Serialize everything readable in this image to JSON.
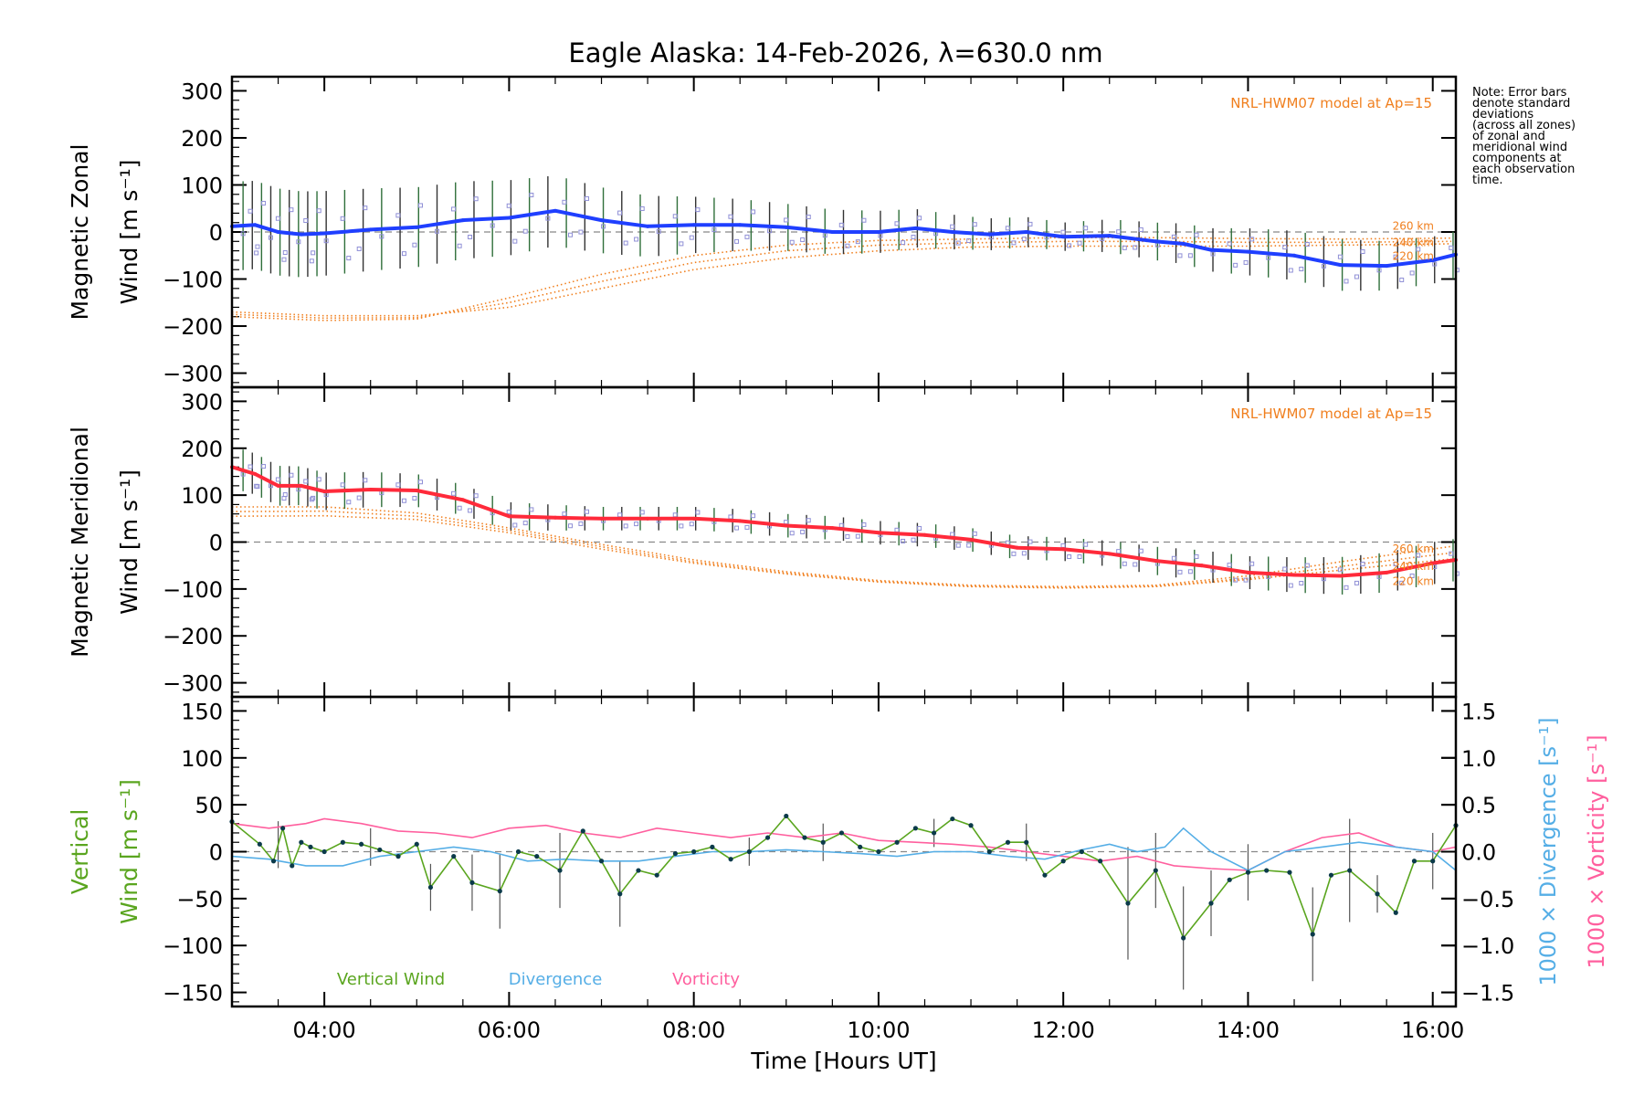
{
  "colors": {
    "zonal": "#1f3fff",
    "meridional": "#ff2a3a",
    "model": "#f07f1e",
    "vertical": "#5aa51f",
    "divergence": "#55aee6",
    "vorticity": "#ff5f9e",
    "zones": "#8f8fd6",
    "errorbar": "#555555",
    "dashed": "#888888"
  },
  "chart_data": [
    {
      "type": "line",
      "panel": "zonal",
      "title": "Eagle Alaska: 14-Feb-2026, λ=630.0 nm",
      "ylabel_line1": "Magnetic Zonal",
      "ylabel_line2": "Wind [m s⁻¹]",
      "ylim": [
        -330,
        330
      ],
      "yticks": [
        300,
        200,
        100,
        0,
        -100,
        -200,
        -300
      ],
      "xlim": [
        3.0,
        16.25
      ],
      "model_label": "NRL-HWM07 model at Ap=15",
      "model_altitudes": [
        "260 km",
        "240 km",
        "220 km"
      ],
      "series": [
        {
          "name": "Zonal Wind",
          "x": [
            3.0,
            3.25,
            3.5,
            3.75,
            4.0,
            4.5,
            5.0,
            5.5,
            6.0,
            6.5,
            7.0,
            7.5,
            8.0,
            8.5,
            9.0,
            9.5,
            10.0,
            10.4,
            10.8,
            11.2,
            11.6,
            12.0,
            12.5,
            13.0,
            13.3,
            13.6,
            14.0,
            14.5,
            15.0,
            15.5,
            16.0,
            16.25
          ],
          "values": [
            12,
            15,
            0,
            -5,
            -3,
            5,
            10,
            25,
            30,
            45,
            25,
            12,
            15,
            15,
            10,
            0,
            0,
            8,
            0,
            -5,
            0,
            -10,
            -8,
            -20,
            -25,
            -38,
            -42,
            -50,
            -70,
            -72,
            -60,
            -48
          ]
        },
        {
          "name": "Error bar half-width",
          "x": [
            3.0,
            4.0,
            5.0,
            6.0,
            7.0,
            8.0,
            9.0,
            10.0,
            11.0,
            12.0,
            13.0,
            14.0,
            15.0,
            16.0
          ],
          "values": [
            95,
            90,
            85,
            80,
            70,
            60,
            50,
            45,
            35,
            30,
            40,
            50,
            55,
            50
          ]
        },
        {
          "name": "HWM07 220 km",
          "x": [
            3.0,
            4.0,
            5.0,
            6.0,
            7.0,
            8.0,
            9.0,
            10.0,
            11.0,
            12.0,
            13.0,
            14.0,
            15.0,
            16.25
          ],
          "values": [
            -170,
            -178,
            -178,
            -160,
            -120,
            -80,
            -55,
            -40,
            -32,
            -30,
            -30,
            -30,
            -28,
            -25
          ]
        },
        {
          "name": "HWM07 240 km",
          "x": [
            3.0,
            4.0,
            5.0,
            6.0,
            7.0,
            8.0,
            9.0,
            10.0,
            11.0,
            12.0,
            13.0,
            14.0,
            15.0,
            16.25
          ],
          "values": [
            -175,
            -183,
            -182,
            -150,
            -105,
            -65,
            -40,
            -28,
            -23,
            -20,
            -20,
            -22,
            -22,
            -20
          ]
        },
        {
          "name": "HWM07 260 km",
          "x": [
            3.0,
            4.0,
            5.0,
            6.0,
            7.0,
            8.0,
            9.0,
            10.0,
            11.0,
            12.0,
            13.0,
            14.0,
            15.0,
            16.25
          ],
          "values": [
            -180,
            -188,
            -185,
            -140,
            -90,
            -50,
            -28,
            -18,
            -15,
            -12,
            -12,
            -14,
            -15,
            -13
          ]
        }
      ]
    },
    {
      "type": "line",
      "panel": "meridional",
      "ylabel_line1": "Magnetic Meridional",
      "ylabel_line2": "Wind [m s⁻¹]",
      "ylim": [
        -330,
        330
      ],
      "yticks": [
        300,
        200,
        100,
        0,
        -100,
        -200,
        -300
      ],
      "xlim": [
        3.0,
        16.25
      ],
      "model_label": "NRL-HWM07 model at Ap=15",
      "model_altitudes": [
        "260 km",
        "240 km",
        "220 km"
      ],
      "series": [
        {
          "name": "Meridional Wind",
          "x": [
            3.0,
            3.25,
            3.5,
            3.75,
            4.0,
            4.5,
            5.0,
            5.5,
            6.0,
            6.5,
            7.0,
            7.5,
            8.0,
            8.5,
            9.0,
            9.5,
            10.0,
            10.5,
            11.0,
            11.5,
            12.0,
            12.5,
            13.0,
            13.5,
            14.0,
            14.5,
            15.0,
            15.5,
            16.0,
            16.25
          ],
          "values": [
            160,
            145,
            120,
            120,
            108,
            112,
            110,
            90,
            55,
            52,
            50,
            50,
            50,
            45,
            35,
            30,
            20,
            15,
            5,
            -12,
            -15,
            -25,
            -40,
            -50,
            -65,
            -70,
            -72,
            -65,
            -45,
            -38
          ]
        },
        {
          "name": "Error bar half-width",
          "x": [
            3.0,
            4.0,
            5.0,
            6.0,
            7.0,
            8.0,
            9.0,
            10.0,
            11.0,
            12.0,
            13.0,
            14.0,
            15.0,
            16.0
          ],
          "values": [
            45,
            40,
            35,
            30,
            25,
            25,
            25,
            25,
            25,
            25,
            30,
            35,
            40,
            45
          ]
        },
        {
          "name": "HWM07 220 km",
          "x": [
            3.0,
            4.0,
            5.0,
            6.0,
            7.0,
            8.0,
            9.0,
            10.0,
            11.0,
            12.0,
            13.0,
            14.0,
            15.0,
            16.25
          ],
          "values": [
            55,
            56,
            48,
            20,
            -15,
            -45,
            -68,
            -85,
            -95,
            -98,
            -95,
            -80,
            -60,
            -35
          ]
        },
        {
          "name": "HWM07 240 km",
          "x": [
            3.0,
            4.0,
            5.0,
            6.0,
            7.0,
            8.0,
            9.0,
            10.0,
            11.0,
            12.0,
            13.0,
            14.0,
            15.0,
            16.25
          ],
          "values": [
            65,
            66,
            55,
            25,
            -10,
            -42,
            -66,
            -84,
            -94,
            -97,
            -94,
            -77,
            -52,
            -22
          ]
        },
        {
          "name": "HWM07 260 km",
          "x": [
            3.0,
            4.0,
            5.0,
            6.0,
            7.0,
            8.0,
            9.0,
            10.0,
            11.0,
            12.0,
            13.0,
            14.0,
            15.0,
            16.25
          ],
          "values": [
            75,
            75,
            62,
            30,
            -5,
            -38,
            -63,
            -82,
            -92,
            -95,
            -92,
            -72,
            -42,
            -8
          ]
        }
      ]
    },
    {
      "type": "line",
      "panel": "vertical",
      "ylabel_line1": "Vertical",
      "ylabel_line2": "Wind [m s⁻¹]",
      "ylim": [
        -165,
        165
      ],
      "yticks": [
        150,
        100,
        50,
        0,
        -50,
        -100,
        -150
      ],
      "y2label_divergence": "1000 × Divergence [s⁻¹]",
      "y2label_vorticity": "1000 × Vorticity [s⁻¹]",
      "y2lim": [
        -1.65,
        1.65
      ],
      "y2ticks": [
        1.5,
        1.0,
        0.5,
        0.0,
        -0.5,
        -1.0,
        -1.5
      ],
      "y2ticklabels": [
        "1.5",
        "1.0",
        "0.5",
        "0.0",
        "−0.5",
        "−1.0",
        "−1.5"
      ],
      "xlim": [
        3.0,
        16.25
      ],
      "xticks": [
        4,
        6,
        8,
        10,
        12,
        14,
        16
      ],
      "xticklabels": [
        "04:00",
        "06:00",
        "08:00",
        "10:00",
        "12:00",
        "14:00",
        "16:00"
      ],
      "xlabel": "Time [Hours UT]",
      "legend": [
        "Vertical Wind",
        "Divergence",
        "Vorticity"
      ],
      "series": [
        {
          "name": "Vertical Wind",
          "x": [
            3.0,
            3.3,
            3.45,
            3.55,
            3.65,
            3.75,
            3.85,
            4.0,
            4.2,
            4.4,
            4.6,
            4.8,
            5.0,
            5.15,
            5.4,
            5.6,
            5.9,
            6.1,
            6.3,
            6.55,
            6.8,
            7.0,
            7.2,
            7.4,
            7.6,
            7.8,
            8.0,
            8.2,
            8.4,
            8.6,
            8.8,
            9.0,
            9.2,
            9.4,
            9.6,
            9.8,
            10.0,
            10.2,
            10.4,
            10.6,
            10.8,
            11.0,
            11.2,
            11.4,
            11.6,
            11.8,
            12.0,
            12.2,
            12.4,
            12.7,
            13.0,
            13.3,
            13.6,
            13.8,
            14.0,
            14.2,
            14.45,
            14.7,
            14.9,
            15.1,
            15.4,
            15.6,
            15.8,
            16.0,
            16.25
          ],
          "values": [
            32,
            8,
            -10,
            25,
            -15,
            10,
            5,
            0,
            10,
            8,
            2,
            -5,
            8,
            -38,
            -5,
            -33,
            -42,
            0,
            -5,
            -20,
            22,
            -10,
            -45,
            -20,
            -25,
            -2,
            0,
            5,
            -8,
            0,
            15,
            38,
            15,
            10,
            20,
            5,
            0,
            10,
            25,
            20,
            35,
            28,
            0,
            10,
            10,
            -25,
            -10,
            0,
            -10,
            -55,
            -20,
            -92,
            -55,
            -30,
            -22,
            -20,
            -22,
            -88,
            -25,
            -20,
            -45,
            -65,
            -10,
            -10,
            28
          ]
        },
        {
          "name": "Vertical Wind error",
          "x": [
            3.5,
            4.5,
            5.15,
            5.6,
            5.9,
            6.55,
            7.2,
            8.6,
            9.4,
            10.6,
            11.6,
            12.7,
            13.0,
            13.3,
            13.6,
            14.0,
            14.7,
            15.1,
            15.4,
            16.0
          ],
          "values": [
            25,
            20,
            25,
            30,
            40,
            40,
            35,
            15,
            20,
            15,
            20,
            60,
            40,
            55,
            35,
            30,
            50,
            55,
            20,
            30
          ]
        },
        {
          "name": "Divergence",
          "x": [
            3.0,
            3.4,
            3.8,
            4.2,
            4.6,
            5.0,
            5.4,
            5.8,
            6.2,
            6.6,
            7.0,
            7.4,
            7.8,
            8.2,
            8.6,
            9.0,
            9.4,
            9.8,
            10.2,
            10.6,
            11.0,
            11.4,
            11.8,
            12.2,
            12.5,
            12.8,
            13.1,
            13.3,
            13.6,
            14.0,
            14.4,
            14.8,
            15.2,
            15.6,
            16.0,
            16.25
          ],
          "values": [
            -0.05,
            -0.08,
            -0.15,
            -0.15,
            -0.05,
            0.0,
            0.05,
            0.0,
            -0.1,
            -0.08,
            -0.1,
            -0.1,
            -0.05,
            0.0,
            0.0,
            0.02,
            0.0,
            -0.02,
            -0.05,
            0.0,
            0.0,
            -0.05,
            -0.08,
            0.02,
            0.08,
            0.0,
            0.05,
            0.25,
            0.0,
            -0.2,
            0.0,
            0.05,
            0.1,
            0.05,
            0.0,
            -0.2
          ]
        },
        {
          "name": "Vorticity",
          "x": [
            3.0,
            3.4,
            3.8,
            4.0,
            4.4,
            4.8,
            5.2,
            5.6,
            6.0,
            6.4,
            6.8,
            7.2,
            7.6,
            8.0,
            8.4,
            8.8,
            9.2,
            9.6,
            10.0,
            10.4,
            10.8,
            11.2,
            11.6,
            12.0,
            12.4,
            12.8,
            13.2,
            13.6,
            14.0,
            14.4,
            14.8,
            15.2,
            15.6,
            16.0,
            16.25
          ],
          "values": [
            0.3,
            0.25,
            0.3,
            0.35,
            0.3,
            0.22,
            0.2,
            0.15,
            0.25,
            0.28,
            0.2,
            0.15,
            0.25,
            0.2,
            0.15,
            0.2,
            0.15,
            0.2,
            0.12,
            0.1,
            0.08,
            0.05,
            0.0,
            -0.05,
            -0.1,
            -0.05,
            -0.15,
            -0.18,
            -0.2,
            0.0,
            0.15,
            0.2,
            0.05,
            0.0,
            0.05
          ]
        }
      ]
    }
  ],
  "note": {
    "lines": [
      "Note: Error bars",
      "denote standard",
      "deviations",
      "(across all zones)",
      "of zonal and",
      "meridional wind",
      "components at",
      "each observation",
      "time."
    ]
  }
}
